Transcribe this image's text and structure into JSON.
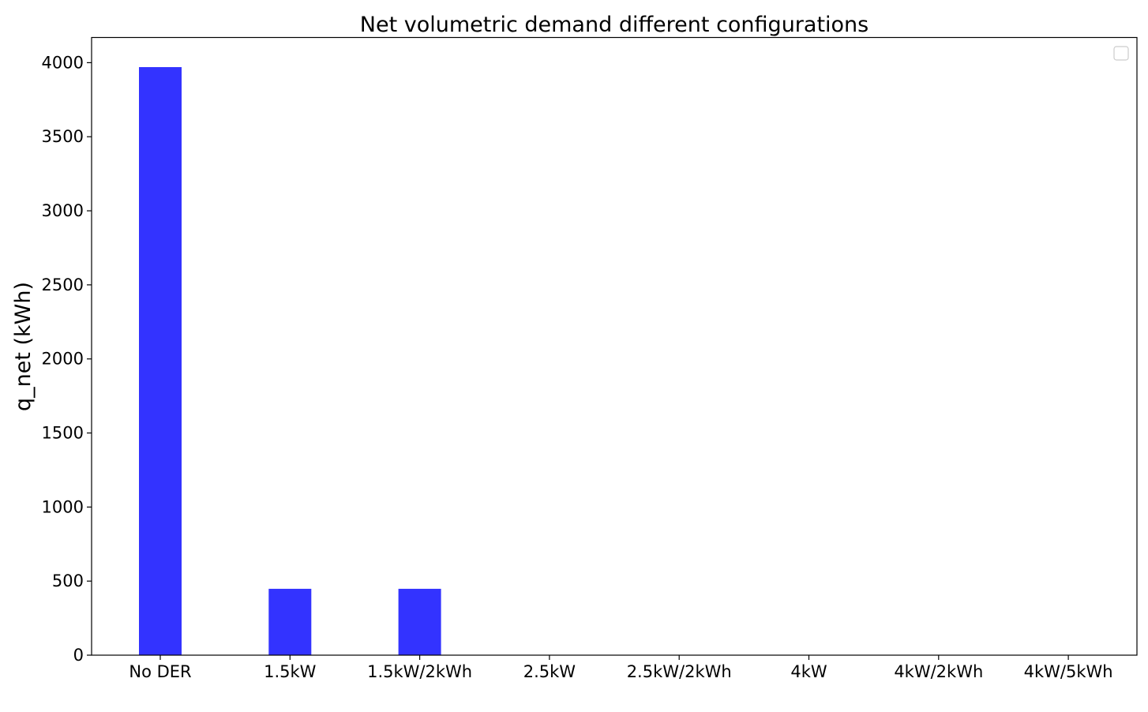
{
  "chart_data": {
    "type": "bar",
    "title": "Net volumetric demand different configurations",
    "xlabel": "",
    "ylabel": "q_net (kWh)",
    "categories": [
      "No DER",
      "1.5kW",
      "1.5kW/2kWh",
      "2.5kW",
      "2.5kW/2kWh",
      "4kW",
      "4kW/2kWh",
      "4kW/5kWh"
    ],
    "values": [
      3970,
      448,
      448,
      0,
      0,
      0,
      0,
      0
    ],
    "yticks": [
      0,
      500,
      1000,
      1500,
      2000,
      2500,
      3000,
      3500,
      4000
    ],
    "ylim": [
      0,
      4170
    ],
    "bar_color": "#3333ff",
    "grid": false,
    "legend": {
      "placement": "top-right",
      "entries": []
    }
  }
}
